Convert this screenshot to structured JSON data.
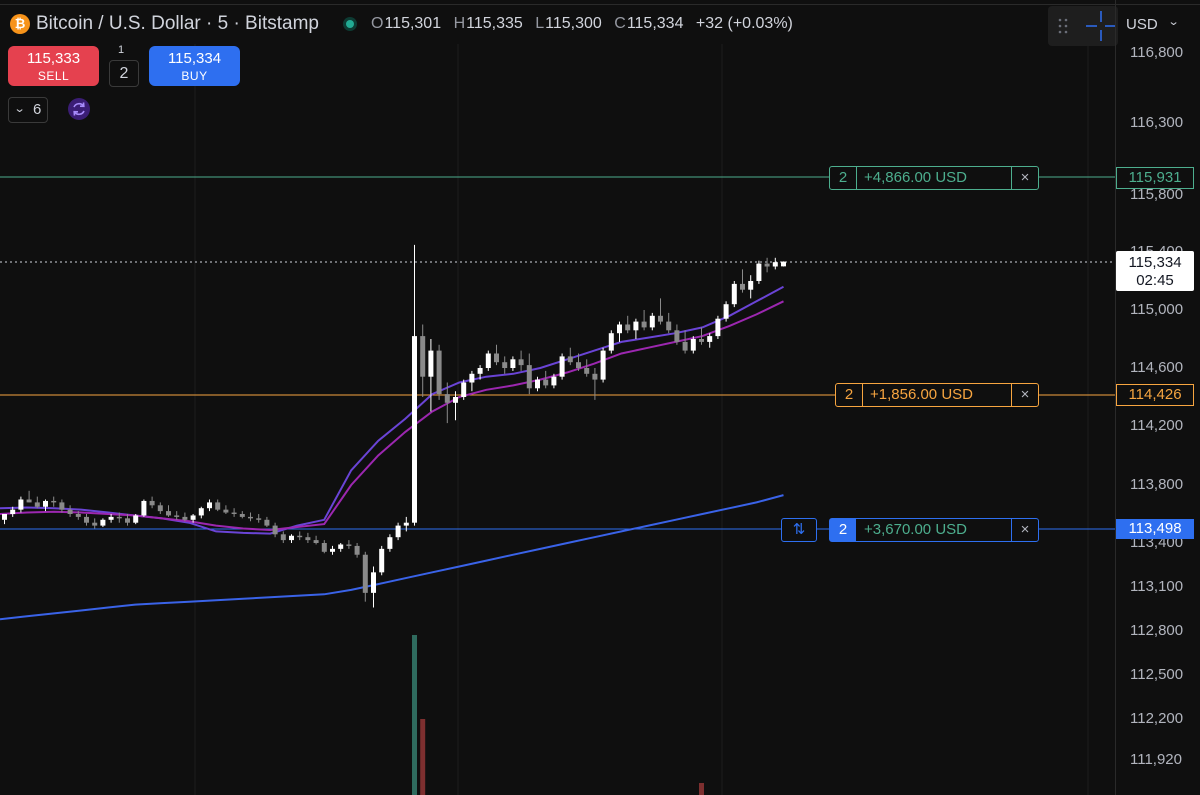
{
  "header": {
    "symbol_icon": "bitcoin-icon",
    "symbol_icon_glyph": "₿",
    "title": "Bitcoin / U.S. Dollar · 5 · Bitstamp",
    "market_status_icon": "market-open-dot-icon",
    "ohlc": {
      "o_label": "O",
      "o": "115,301",
      "h_label": "H",
      "h": "115,335",
      "l_label": "L",
      "l": "115,300",
      "c_label": "C",
      "c": "115,334",
      "change": "+32 (+0.03%)"
    }
  },
  "trade_panel": {
    "sell_price": "115,333",
    "sell_label": "SELL",
    "buy_price": "115,334",
    "buy_label": "BUY",
    "spread": "1",
    "quantity": "2"
  },
  "indicators": {
    "toggle_icon": "chevron-down-icon",
    "count": "6",
    "sync_icon": "sync-icon"
  },
  "toolbar": {
    "drag_icon": "drag-handle-icon",
    "crosshair_icon": "crosshair-icon",
    "currency": "USD",
    "currency_icon": "chevron-down-icon"
  },
  "orders": [
    {
      "qty": "2",
      "pnl": "+4,866.00 USD",
      "price": "115,931",
      "color": "#4dae8e",
      "close": "×"
    },
    {
      "qty": "2",
      "pnl": "+1,856.00 USD",
      "price": "114,426",
      "color": "#f7a540",
      "close": "×"
    },
    {
      "qty": "2",
      "pnl": "+3,670.00 USD",
      "price": "113,498",
      "color": "#2e6ff0",
      "close": "×",
      "reverse_icon": "reverse-position-icon",
      "reverse_glyph": "⇅"
    }
  ],
  "last_price": {
    "price": "115,334",
    "countdown": "02:45"
  },
  "colors": {
    "background": "#0f0f0f",
    "candle_up": "#ffffff",
    "candle_down": "#8a8a8a",
    "ma_fast": "#6a44d6",
    "ma_slow": "#9c27b0",
    "ma_long": "#3a63e8",
    "volume_up": "#2f6b5e",
    "volume_down": "#7d2f2f"
  },
  "chart_data": {
    "type": "candlestick",
    "symbol": "Bitcoin / U.S. Dollar",
    "interval": "5",
    "exchange": "Bitstamp",
    "y_axis_ticks": [
      "116,800",
      "116,300",
      "115,800",
      "115,400",
      "115,000",
      "114,600",
      "114,200",
      "113,800",
      "113,400",
      "113,100",
      "112,800",
      "112,500",
      "112,200",
      "111,920"
    ],
    "ylim": [
      111800,
      116950
    ],
    "candles": [
      [
        113560,
        113600,
        113530,
        113600
      ],
      [
        113600,
        113650,
        113580,
        113630
      ],
      [
        113630,
        113720,
        113610,
        113700
      ],
      [
        113700,
        113760,
        113680,
        113680
      ],
      [
        113680,
        113720,
        113640,
        113650
      ],
      [
        113650,
        113700,
        113620,
        113690
      ],
      [
        113690,
        113720,
        113650,
        113680
      ],
      [
        113680,
        113700,
        113610,
        113630
      ],
      [
        113630,
        113660,
        113580,
        113600
      ],
      [
        113600,
        113620,
        113560,
        113580
      ],
      [
        113580,
        113600,
        113520,
        113540
      ],
      [
        113540,
        113570,
        113500,
        113520
      ],
      [
        113520,
        113570,
        113510,
        113560
      ],
      [
        113560,
        113600,
        113540,
        113580
      ],
      [
        113580,
        113610,
        113540,
        113570
      ],
      [
        113570,
        113600,
        113520,
        113540
      ],
      [
        113540,
        113600,
        113530,
        113590
      ],
      [
        113590,
        113700,
        113580,
        113690
      ],
      [
        113690,
        113720,
        113640,
        113660
      ],
      [
        113660,
        113680,
        113600,
        113620
      ],
      [
        113620,
        113660,
        113580,
        113590
      ],
      [
        113590,
        113620,
        113560,
        113580
      ],
      [
        113580,
        113610,
        113550,
        113560
      ],
      [
        113560,
        113600,
        113540,
        113590
      ],
      [
        113590,
        113650,
        113570,
        113640
      ],
      [
        113640,
        113700,
        113620,
        113680
      ],
      [
        113680,
        113700,
        113620,
        113630
      ],
      [
        113630,
        113660,
        113600,
        113610
      ],
      [
        113610,
        113640,
        113580,
        113600
      ],
      [
        113600,
        113620,
        113570,
        113580
      ],
      [
        113580,
        113610,
        113550,
        113570
      ],
      [
        113570,
        113600,
        113540,
        113560
      ],
      [
        113560,
        113580,
        113510,
        113520
      ],
      [
        113520,
        113540,
        113440,
        113460
      ],
      [
        113460,
        113480,
        113400,
        113420
      ],
      [
        113420,
        113460,
        113400,
        113450
      ],
      [
        113450,
        113480,
        113420,
        113440
      ],
      [
        113440,
        113470,
        113400,
        113420
      ],
      [
        113420,
        113450,
        113390,
        113400
      ],
      [
        113400,
        113420,
        113330,
        113340
      ],
      [
        113340,
        113380,
        113320,
        113360
      ],
      [
        113360,
        113400,
        113340,
        113390
      ],
      [
        113390,
        113420,
        113360,
        113380
      ],
      [
        113380,
        113400,
        113300,
        113320
      ],
      [
        113320,
        113340,
        113000,
        113060
      ],
      [
        113060,
        113240,
        112960,
        113200
      ],
      [
        113200,
        113380,
        113180,
        113360
      ],
      [
        113360,
        113460,
        113340,
        113440
      ],
      [
        113440,
        113540,
        113420,
        113520
      ],
      [
        113520,
        113580,
        113480,
        113540
      ],
      [
        113540,
        115450,
        113520,
        114820
      ],
      [
        114820,
        114900,
        114400,
        114540
      ],
      [
        114540,
        114800,
        114300,
        114720
      ],
      [
        114720,
        114760,
        114380,
        114420
      ],
      [
        114420,
        114500,
        114220,
        114360
      ],
      [
        114360,
        114440,
        114240,
        114400
      ],
      [
        114400,
        114520,
        114380,
        114500
      ],
      [
        114500,
        114580,
        114440,
        114560
      ],
      [
        114560,
        114620,
        114520,
        114600
      ],
      [
        114600,
        114720,
        114580,
        114700
      ],
      [
        114700,
        114760,
        114620,
        114640
      ],
      [
        114640,
        114680,
        114560,
        114600
      ],
      [
        114600,
        114680,
        114580,
        114660
      ],
      [
        114660,
        114720,
        114580,
        114620
      ],
      [
        114620,
        114700,
        114420,
        114460
      ],
      [
        114460,
        114540,
        114440,
        114520
      ],
      [
        114520,
        114580,
        114460,
        114480
      ],
      [
        114480,
        114560,
        114460,
        114540
      ],
      [
        114540,
        114700,
        114520,
        114680
      ],
      [
        114680,
        114740,
        114620,
        114640
      ],
      [
        114640,
        114700,
        114580,
        114600
      ],
      [
        114600,
        114660,
        114540,
        114560
      ],
      [
        114560,
        114600,
        114380,
        114520
      ],
      [
        114520,
        114740,
        114500,
        114720
      ],
      [
        114720,
        114860,
        114700,
        114840
      ],
      [
        114840,
        114920,
        114780,
        114900
      ],
      [
        114900,
        114960,
        114840,
        114860
      ],
      [
        114860,
        114940,
        114800,
        114920
      ],
      [
        114920,
        115000,
        114860,
        114880
      ],
      [
        114880,
        114980,
        114860,
        114960
      ],
      [
        114960,
        115080,
        114900,
        114920
      ],
      [
        114920,
        114980,
        114840,
        114860
      ],
      [
        114860,
        114900,
        114760,
        114780
      ],
      [
        114780,
        114860,
        114700,
        114720
      ],
      [
        114720,
        114820,
        114700,
        114800
      ],
      [
        114800,
        114880,
        114760,
        114780
      ],
      [
        114780,
        114840,
        114740,
        114820
      ],
      [
        114820,
        114960,
        114800,
        114940
      ],
      [
        114940,
        115060,
        114920,
        115040
      ],
      [
        115040,
        115200,
        115020,
        115180
      ],
      [
        115180,
        115280,
        115120,
        115140
      ],
      [
        115140,
        115240,
        115080,
        115200
      ],
      [
        115200,
        115340,
        115180,
        115320
      ],
      [
        115320,
        115360,
        115260,
        115300
      ],
      [
        115300,
        115360,
        115280,
        115330
      ],
      [
        115301,
        115335,
        115300,
        115334
      ]
    ],
    "moving_averages": [
      {
        "values": [
          113640,
          113645,
          113640,
          113630,
          113610,
          113590,
          113570,
          113540,
          113480,
          113470,
          113465,
          113520,
          113560,
          113900,
          114100,
          114250,
          114420,
          114500,
          114540,
          114560,
          114600,
          114660,
          114720,
          114780,
          114810,
          114840,
          114880,
          114960,
          115060,
          115160
        ]
      },
      {
        "values": [
          113600,
          113610,
          113615,
          113610,
          113600,
          113590,
          113570,
          113550,
          113520,
          113500,
          113490,
          113510,
          113530,
          113800,
          114000,
          114160,
          114300,
          114400,
          114450,
          114480,
          114520,
          114570,
          114630,
          114700,
          114740,
          114780,
          114820,
          114890,
          114970,
          115060
        ]
      },
      {
        "values": [
          112880,
          112900,
          112920,
          112940,
          112960,
          112980,
          112990,
          113000,
          113010,
          113020,
          113030,
          113040,
          113050,
          113080,
          113120,
          113160,
          113200,
          113240,
          113280,
          113320,
          113360,
          113400,
          113440,
          113480,
          113520,
          113560,
          113600,
          113640,
          113680,
          113730
        ]
      }
    ],
    "volume": [
      {
        "index": 50,
        "dir": "up"
      },
      {
        "index": 51,
        "dir": "down"
      },
      {
        "index": 85,
        "dir": "down"
      }
    ]
  }
}
